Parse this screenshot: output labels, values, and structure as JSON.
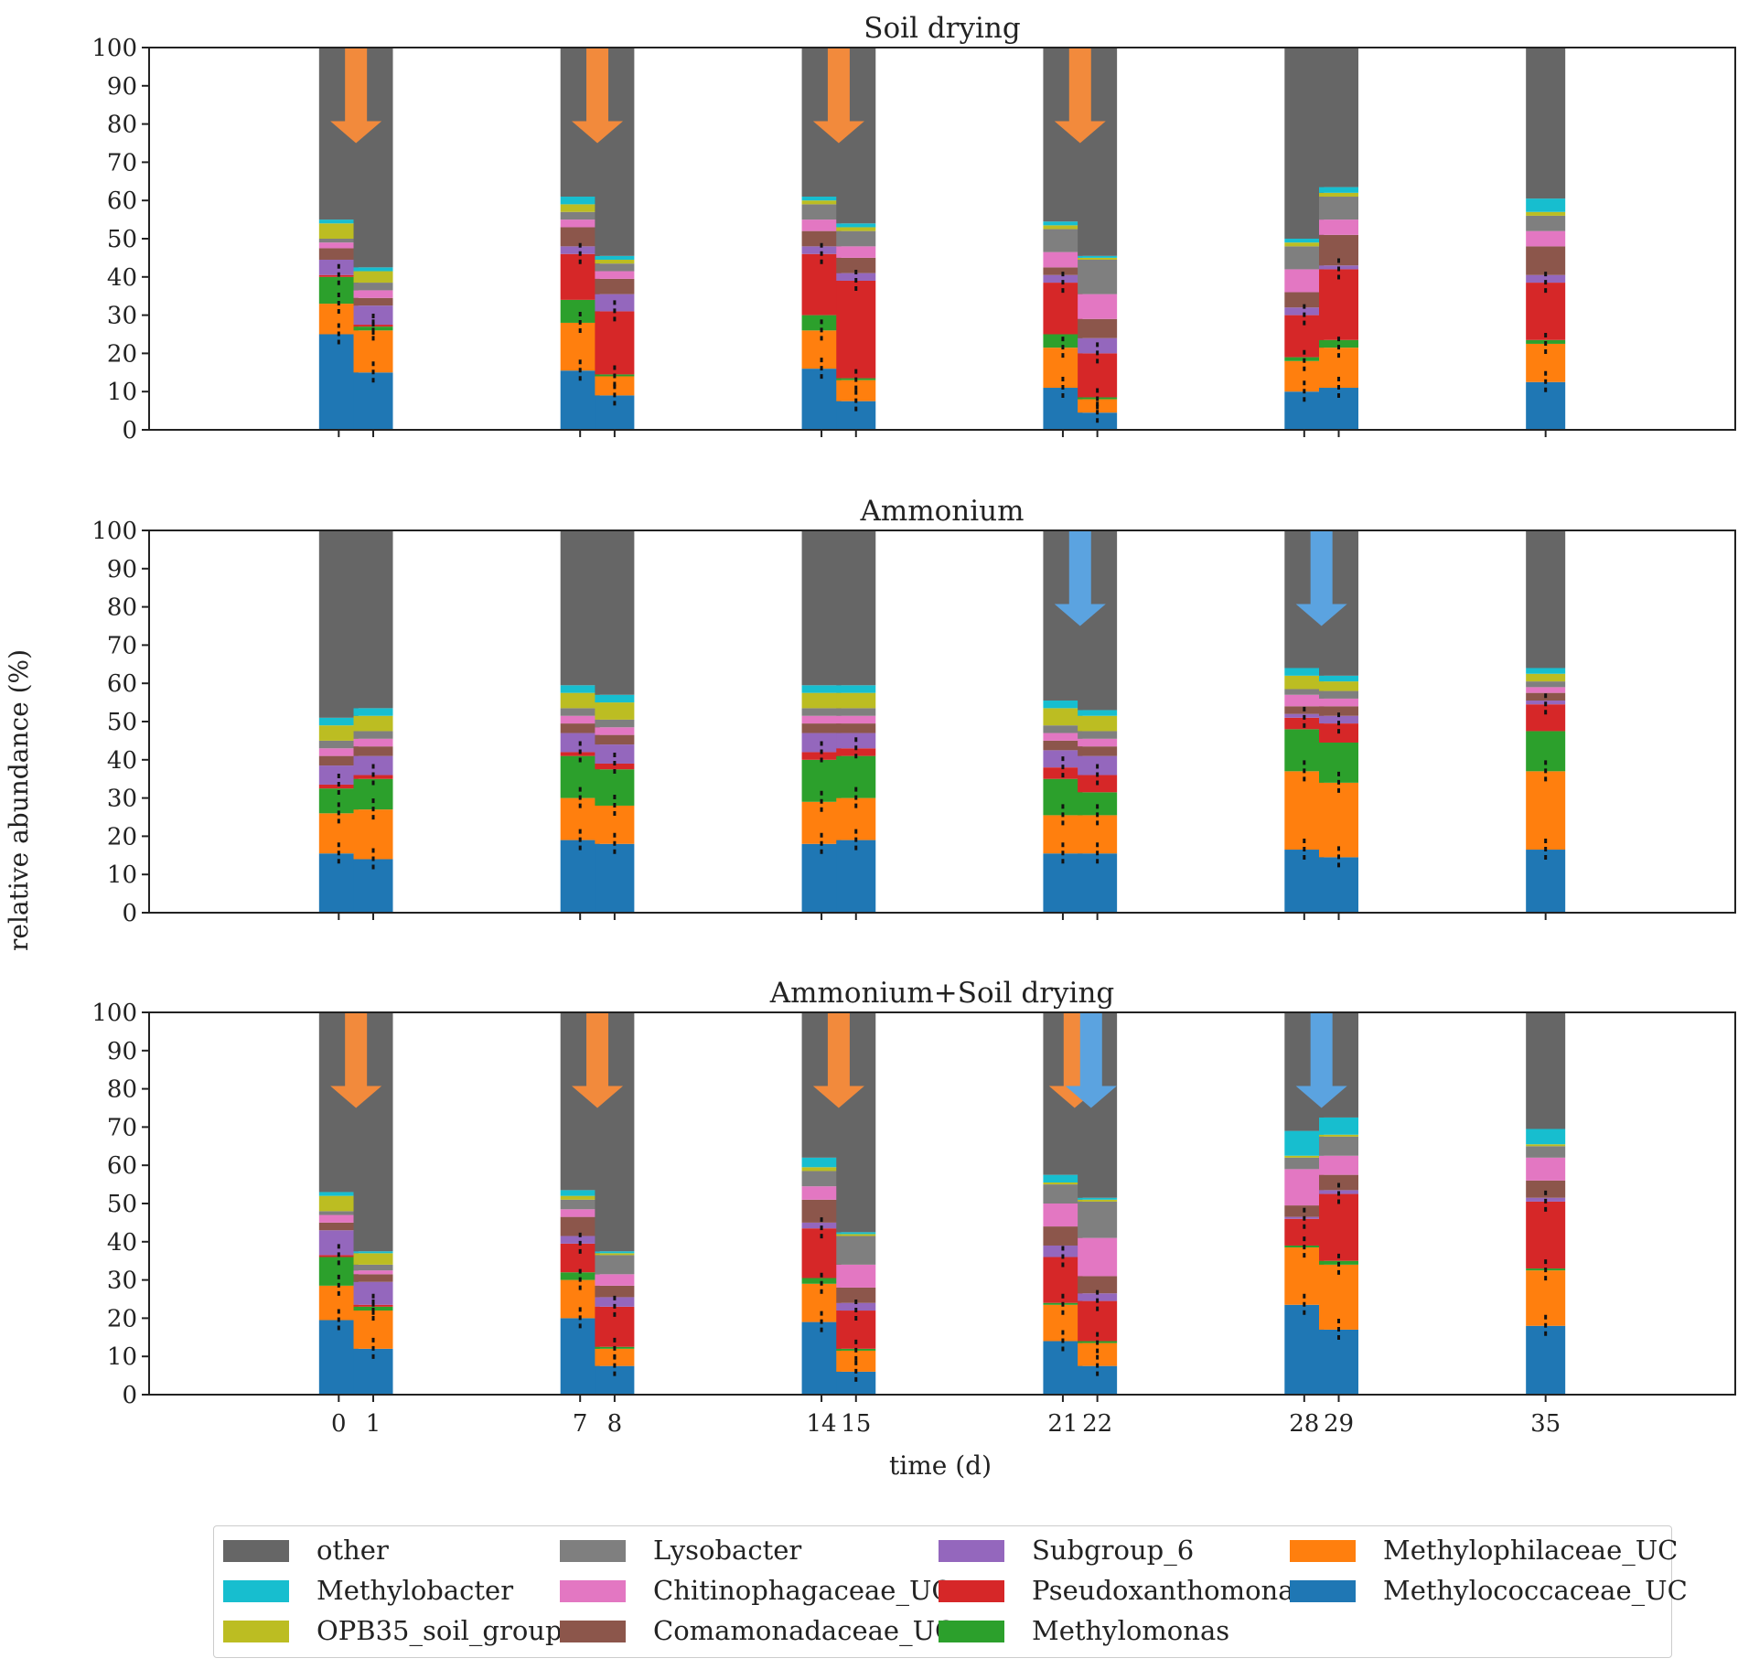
{
  "chart_data": {
    "type": "bar",
    "stacked": true,
    "xlabel": "time (d)",
    "ylabel": "relative abundance (%)",
    "ylim": [
      0,
      100
    ],
    "yticks": [
      0,
      10,
      20,
      30,
      40,
      50,
      60,
      70,
      80,
      90,
      100
    ],
    "categories": [
      "0",
      "1",
      "7",
      "8",
      "14",
      "15",
      "21",
      "22",
      "28",
      "29",
      "35"
    ],
    "series_names": [
      "Methylococcaceae_UC",
      "Methylophilaceae_UC",
      "Methylomonas",
      "Pseudoxanthomonas",
      "Subgroup_6",
      "Comamonadaceae_UC",
      "Chitinophagaceae_UC",
      "Lysobacter",
      "OPB35_soil_group",
      "Methylobacter",
      "other"
    ],
    "colors": {
      "Methylococcaceae_UC": "#1f77b4",
      "Methylophilaceae_UC": "#ff7f0e",
      "Methylomonas": "#2ca02c",
      "Pseudoxanthomonas": "#d62728",
      "Subgroup_6": "#9467bd",
      "Comamonadaceae_UC": "#8c564b",
      "Chitinophagaceae_UC": "#e377c2",
      "Lysobacter": "#7f7f7f",
      "OPB35_soil_group": "#bcbd22",
      "Methylobacter": "#17becf",
      "other": "#666666",
      "arrow_drying": "#f28a3c",
      "arrow_ammonium": "#5ba3e0"
    },
    "panels": [
      {
        "title": "Soil drying",
        "arrows": [
          {
            "after": "0",
            "kind": "drying"
          },
          {
            "after": "7",
            "kind": "drying"
          },
          {
            "after": "14",
            "kind": "drying"
          },
          {
            "after": "21",
            "kind": "drying"
          }
        ],
        "bars": [
          {
            "day": "0",
            "values": [
              25,
              8,
              7,
              0.5,
              4,
              3,
              1.5,
              1,
              4,
              1,
              45
            ]
          },
          {
            "day": "1",
            "values": [
              15,
              11,
              1,
              0.5,
              5,
              2,
              2,
              2,
              3,
              1,
              57.5
            ]
          },
          {
            "day": "7",
            "values": [
              15.5,
              12.5,
              6,
              12,
              2,
              5,
              2,
              2,
              2,
              2,
              39
            ]
          },
          {
            "day": "8",
            "values": [
              9,
              5,
              0.5,
              16.5,
              4.5,
              4,
              2,
              2,
              1,
              1,
              54.5
            ]
          },
          {
            "day": "14",
            "values": [
              16,
              10,
              4,
              16,
              2,
              4,
              3,
              4,
              1,
              1,
              39
            ]
          },
          {
            "day": "15",
            "values": [
              7.5,
              5.5,
              0.5,
              25.5,
              2,
              4,
              3,
              4,
              1,
              1,
              46
            ]
          },
          {
            "day": "21",
            "values": [
              11,
              10.5,
              3.5,
              13.5,
              2,
              2,
              4,
              6,
              1,
              1,
              45.5
            ]
          },
          {
            "day": "22",
            "values": [
              4.5,
              3.5,
              0.5,
              11.5,
              4,
              5,
              6.5,
              9,
              0.5,
              0.5,
              54.5
            ]
          },
          {
            "day": "28",
            "values": [
              10,
              8,
              1,
              11,
              2,
              4,
              6,
              6,
              1,
              1,
              50
            ]
          },
          {
            "day": "29",
            "values": [
              11,
              10.5,
              2,
              18.5,
              1,
              8,
              4,
              6,
              1,
              1.5,
              36.5
            ]
          },
          {
            "day": "35",
            "values": [
              12.5,
              10,
              1,
              15,
              2,
              7.5,
              4,
              4,
              1,
              3.5,
              39.5
            ]
          }
        ]
      },
      {
        "title": "Ammonium",
        "arrows": [
          {
            "after": "21",
            "kind": "ammonium"
          },
          {
            "after": "28",
            "kind": "ammonium"
          }
        ],
        "bars": [
          {
            "day": "0",
            "values": [
              15.5,
              10.5,
              6.5,
              1,
              5,
              2.5,
              2,
              2,
              4,
              2,
              49
            ]
          },
          {
            "day": "1",
            "values": [
              14,
              13,
              8,
              1,
              5,
              2.5,
              2,
              2,
              4,
              2,
              46.5
            ]
          },
          {
            "day": "7",
            "values": [
              19,
              11,
              11,
              1,
              5,
              2.5,
              2,
              2,
              4,
              2,
              40.5
            ]
          },
          {
            "day": "8",
            "values": [
              18,
              10,
              9.5,
              1.5,
              5,
              2.5,
              2,
              2,
              4.5,
              2,
              43
            ]
          },
          {
            "day": "14",
            "values": [
              18,
              11,
              11,
              2,
              5,
              2.5,
              2,
              2,
              4,
              2,
              40.5
            ]
          },
          {
            "day": "15",
            "values": [
              19,
              11,
              11,
              2,
              4,
              2.5,
              2,
              2,
              4,
              2,
              40.5
            ]
          },
          {
            "day": "21",
            "values": [
              15.5,
              10,
              9.5,
              3,
              4.5,
              2.5,
              2,
              2,
              4.5,
              2,
              44.5
            ]
          },
          {
            "day": "22",
            "values": [
              15.5,
              10,
              6,
              4.5,
              5,
              2.5,
              2,
              2,
              4,
              1.5,
              47
            ]
          },
          {
            "day": "28",
            "values": [
              16.5,
              20.5,
              11,
              3,
              1,
              2,
              3,
              1.5,
              3.5,
              2,
              36
            ]
          },
          {
            "day": "29",
            "values": [
              14.5,
              19.5,
              10.5,
              5,
              2,
              2.5,
              2,
              2,
              2.5,
              1.5,
              38
            ]
          },
          {
            "day": "35",
            "values": [
              16.5,
              20.5,
              10.5,
              7,
              1,
              2,
              1.5,
              1.5,
              2,
              1.5,
              36
            ]
          }
        ]
      },
      {
        "title": "Ammonium+Soil drying",
        "arrows": [
          {
            "after": "0",
            "kind": "drying"
          },
          {
            "after": "7",
            "kind": "drying"
          },
          {
            "after": "14",
            "kind": "drying"
          },
          {
            "after": "21",
            "kind": "both"
          },
          {
            "after": "28",
            "kind": "ammonium"
          }
        ],
        "bars": [
          {
            "day": "0",
            "values": [
              19.5,
              9,
              7.5,
              0.5,
              6.5,
              2,
              2,
              1,
              4,
              1,
              47
            ]
          },
          {
            "day": "1",
            "values": [
              12,
              10,
              1,
              0.5,
              6,
              2,
              1,
              1.5,
              3,
              0.5,
              62.5
            ]
          },
          {
            "day": "7",
            "values": [
              20,
              10,
              2,
              7.5,
              2,
              5,
              2,
              2.5,
              1,
              1.5,
              46.5
            ]
          },
          {
            "day": "8",
            "values": [
              7.5,
              4.5,
              0.5,
              10.5,
              2.5,
              3,
              3,
              5,
              0.5,
              0.5,
              62.5
            ]
          },
          {
            "day": "14",
            "values": [
              19,
              10,
              1.5,
              13,
              1.5,
              6,
              3.5,
              4,
              1,
              2.5,
              38
            ]
          },
          {
            "day": "15",
            "values": [
              6,
              5.5,
              0.5,
              10,
              2,
              4,
              6,
              7.5,
              0.5,
              0.5,
              57.5
            ]
          },
          {
            "day": "21",
            "values": [
              14,
              9.5,
              0.5,
              12,
              3,
              5,
              6,
              5,
              0.5,
              2,
              42.5
            ]
          },
          {
            "day": "22",
            "values": [
              7.5,
              6,
              0.5,
              10.5,
              2,
              4.5,
              10,
              9.5,
              0.5,
              0.5,
              48.5
            ]
          },
          {
            "day": "28",
            "values": [
              23.5,
              15,
              0.5,
              7,
              0.5,
              3,
              9.5,
              3,
              0.5,
              6.5,
              31
            ]
          },
          {
            "day": "29",
            "values": [
              17,
              17,
              1,
              17.5,
              1,
              4,
              5,
              5,
              0.5,
              4.5,
              27.5
            ]
          },
          {
            "day": "35",
            "values": [
              18,
              14.5,
              0.5,
              17.5,
              1,
              4.5,
              6,
              3,
              0.5,
              4,
              30.5
            ]
          }
        ]
      }
    ],
    "legend": [
      {
        "label": "other",
        "series": "other"
      },
      {
        "label": "Methylobacter",
        "series": "Methylobacter"
      },
      {
        "label": "OPB35_soil_group",
        "series": "OPB35_soil_group"
      },
      {
        "label": "Lysobacter",
        "series": "Lysobacter"
      },
      {
        "label": "Chitinophagaceae_UC",
        "series": "Chitinophagaceae_UC"
      },
      {
        "label": "Comamonadaceae_UC",
        "series": "Comamonadaceae_UC"
      },
      {
        "label": "Subgroup_6",
        "series": "Subgroup_6"
      },
      {
        "label": "Pseudoxanthomonas",
        "series": "Pseudoxanthomonas"
      },
      {
        "label": "Methylomonas",
        "series": "Methylomonas"
      },
      {
        "label": "Methylophilaceae_UC",
        "series": "Methylophilaceae_UC"
      },
      {
        "label": "Methylococcaceae_UC",
        "series": "Methylococcaceae_UC"
      }
    ]
  }
}
